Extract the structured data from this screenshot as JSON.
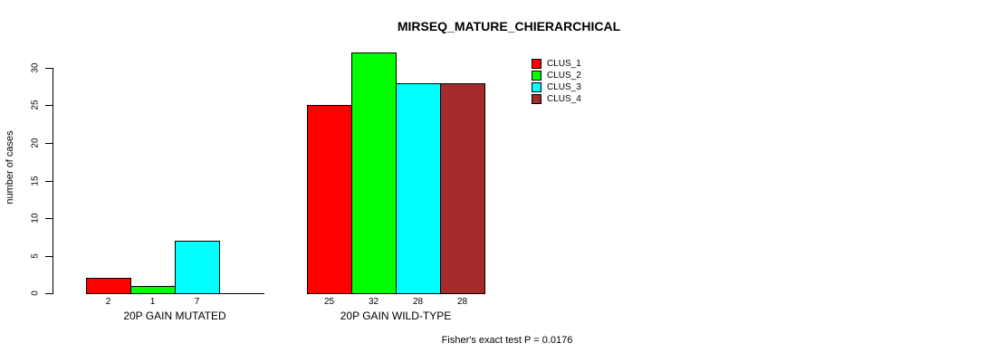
{
  "chart_data": {
    "type": "bar",
    "title": "MIRSEQ_MATURE_CHIERARCHICAL",
    "ylabel": "number of cases",
    "xlabel": "",
    "ylim": [
      0,
      30
    ],
    "yticks": [
      0,
      5,
      10,
      15,
      20,
      25,
      30
    ],
    "grid": false,
    "legend_position": "top-right",
    "series": [
      {
        "name": "CLUS_1",
        "color": "#FF0000"
      },
      {
        "name": "CLUS_2",
        "color": "#00FF00"
      },
      {
        "name": "CLUS_3",
        "color": "#00FFFF"
      },
      {
        "name": "CLUS_4",
        "color": "#A52A2A"
      }
    ],
    "groups": [
      {
        "label": "20P GAIN MUTATED",
        "values": [
          2,
          1,
          7,
          0
        ],
        "value_labels": [
          "2",
          "1",
          "7",
          ""
        ]
      },
      {
        "label": "20P GAIN WILD-TYPE",
        "values": [
          25,
          32,
          28,
          28
        ],
        "value_labels": [
          "25",
          "32",
          "28",
          "28"
        ]
      }
    ],
    "annotation": "Fisher's exact test P = 0.0176"
  }
}
